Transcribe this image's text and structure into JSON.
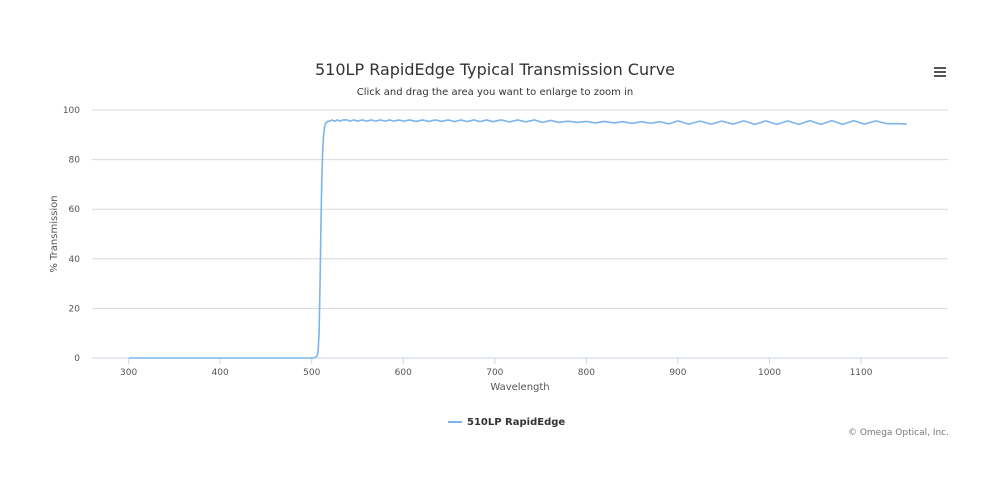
{
  "chart": {
    "title": "510LP RapidEdge Typical Transmission Curve",
    "subtitle": "Click and drag the area you want to enlarge to zoom in",
    "menu_icon": "hamburger-menu-icon",
    "credits": "© Omega Optical, Inc."
  },
  "chart_data": {
    "type": "line",
    "title": "510LP RapidEdge Typical Transmission Curve",
    "subtitle": "Click and drag the area you want to enlarge to zoom in",
    "xlabel": "Wavelength",
    "ylabel": "% Transmission",
    "xlim": [
      260,
      1195
    ],
    "ylim": [
      0,
      100
    ],
    "xticks": [
      300,
      400,
      500,
      600,
      700,
      800,
      900,
      1000,
      1100
    ],
    "yticks": [
      0,
      20,
      40,
      60,
      80,
      100
    ],
    "grid": {
      "y": true,
      "x": false
    },
    "legend_position": "bottom-center",
    "colors": {
      "series": "#7cb5ec"
    },
    "series": [
      {
        "name": "510LP RapidEdge",
        "x": [
          300,
          350,
          400,
          450,
          500,
          504,
          506,
          507,
          508,
          509,
          510,
          511,
          512,
          513,
          514,
          515,
          516,
          518,
          520,
          522,
          525,
          528,
          531,
          534,
          538,
          542,
          546,
          550,
          555,
          560,
          565,
          570,
          575,
          580,
          585,
          590,
          595,
          600,
          607,
          614,
          621,
          628,
          635,
          642,
          649,
          656,
          663,
          670,
          677,
          684,
          691,
          698,
          707,
          716,
          725,
          734,
          743,
          752,
          761,
          770,
          780,
          790,
          800,
          810,
          820,
          830,
          840,
          850,
          860,
          870,
          880,
          890,
          900,
          912,
          924,
          936,
          948,
          960,
          972,
          984,
          996,
          1008,
          1020,
          1032,
          1044,
          1056,
          1068,
          1080,
          1092,
          1104,
          1116,
          1128,
          1140,
          1150
        ],
        "y": [
          0,
          0,
          0,
          0,
          0,
          0.2,
          1,
          3,
          10,
          28,
          52,
          72,
          84,
          90,
          93,
          94.5,
          95,
          95.5,
          95.5,
          96,
          95.5,
          96,
          95.5,
          96,
          96,
          95.5,
          96,
          95.5,
          96,
          95.5,
          96,
          95.5,
          96,
          95.5,
          96,
          95.5,
          96,
          95.5,
          96,
          95.4,
          96,
          95.4,
          96,
          95.4,
          96,
          95.3,
          96,
          95.3,
          96,
          95.3,
          96,
          95.3,
          96,
          95.2,
          96,
          95.2,
          96,
          95,
          95.8,
          95,
          95.5,
          95,
          95.4,
          94.8,
          95.4,
          94.8,
          95.3,
          94.6,
          95.3,
          94.6,
          95.3,
          94.4,
          95.6,
          94.3,
          95.5,
          94.3,
          95.5,
          94.3,
          95.6,
          94.2,
          95.6,
          94.2,
          95.6,
          94.2,
          95.7,
          94.2,
          95.7,
          94.2,
          95.7,
          94.3,
          95.6,
          94.5,
          94.5,
          94.4
        ]
      }
    ]
  }
}
